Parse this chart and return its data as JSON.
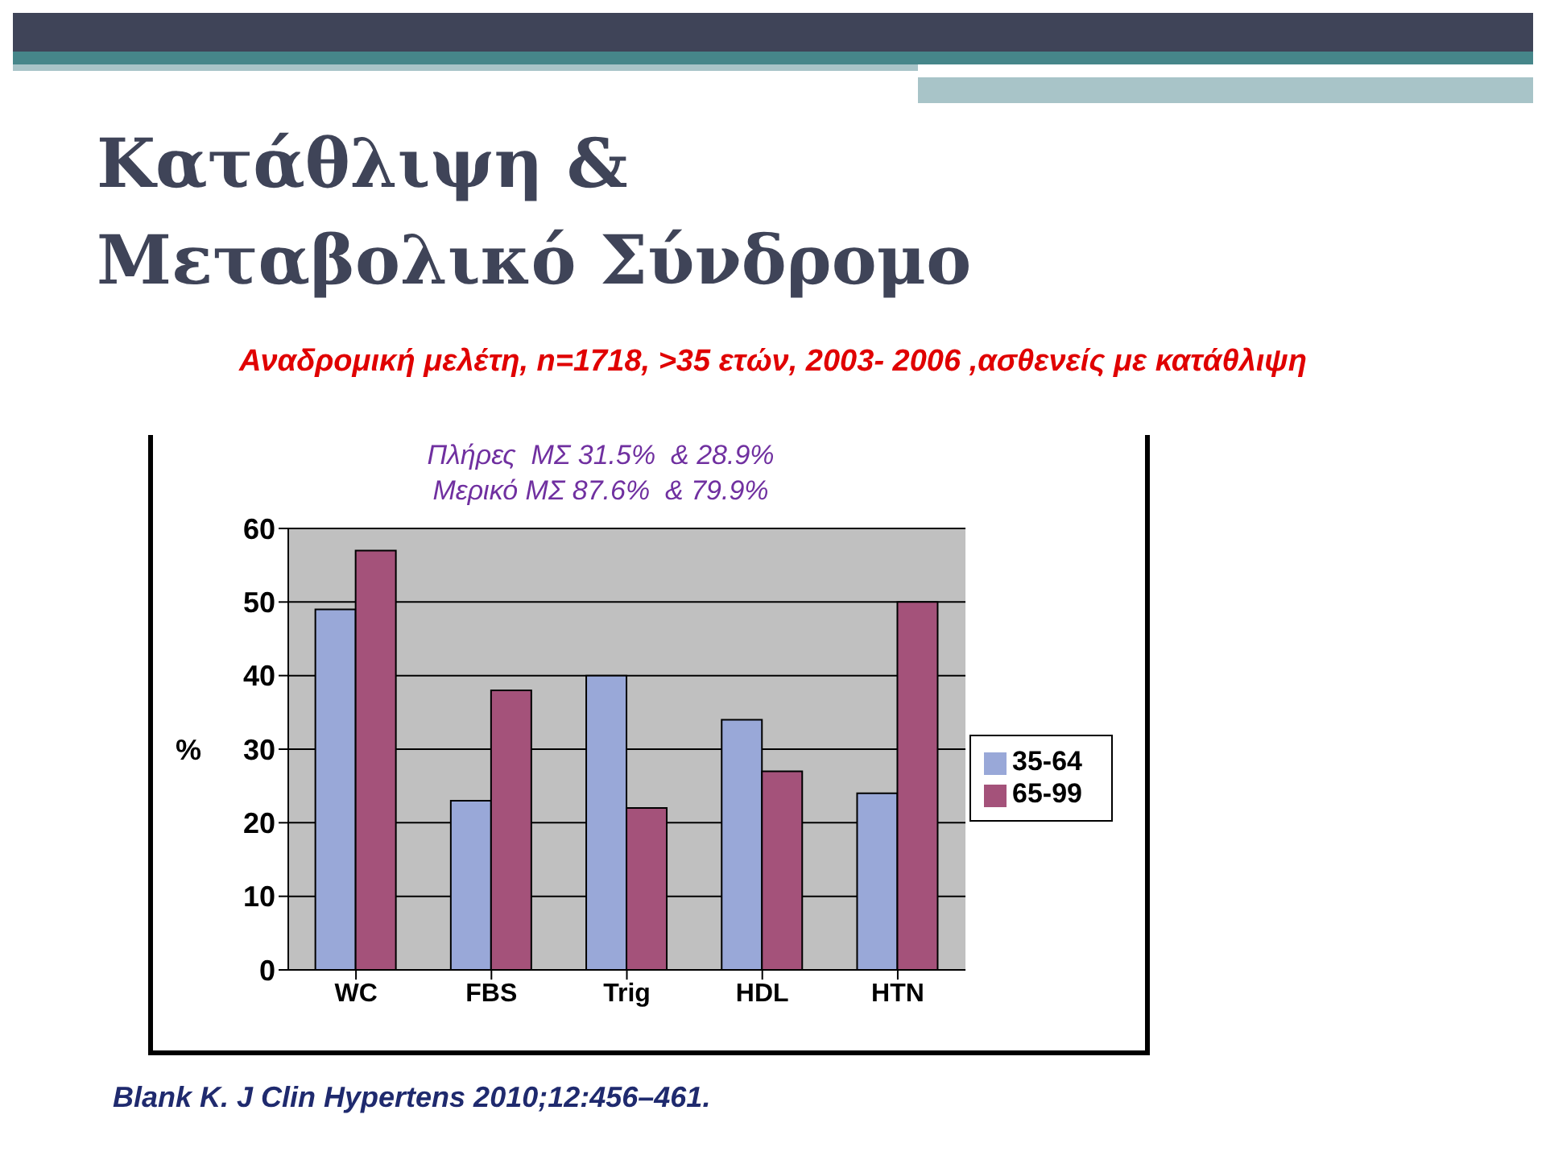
{
  "chart_data": {
    "type": "bar",
    "title": "Κατάθλιψη & Μεταβολικό Σύνδρομο",
    "subtitle": "Αναδρομική μελέτη, n=1718, >35 ετών, 2003- 2006 ,ασθενείς με κατάθλιψη",
    "categories": [
      "WC",
      "FBS",
      "Trig",
      "HDL",
      "HTN"
    ],
    "series": [
      {
        "name": "35-64",
        "color": "#99a8d8",
        "values": [
          49,
          23,
          40,
          34,
          24
        ]
      },
      {
        "name": "65-99",
        "color": "#a4527a",
        "values": [
          57,
          38,
          22,
          27,
          50
        ]
      }
    ],
    "ylabel": "%",
    "ylim": [
      0,
      60
    ],
    "yticks": [
      0,
      10,
      20,
      30,
      40,
      50,
      60
    ],
    "grid": "y",
    "legend": "right",
    "annotations": [
      "Πλήρες  ΜΣ 31.5%  & 28.9%",
      "Μερικό ΜΣ 87.6%  & 79.9%",
      "Blank K. J Clin Hypertens 2010;12:456–461."
    ]
  }
}
